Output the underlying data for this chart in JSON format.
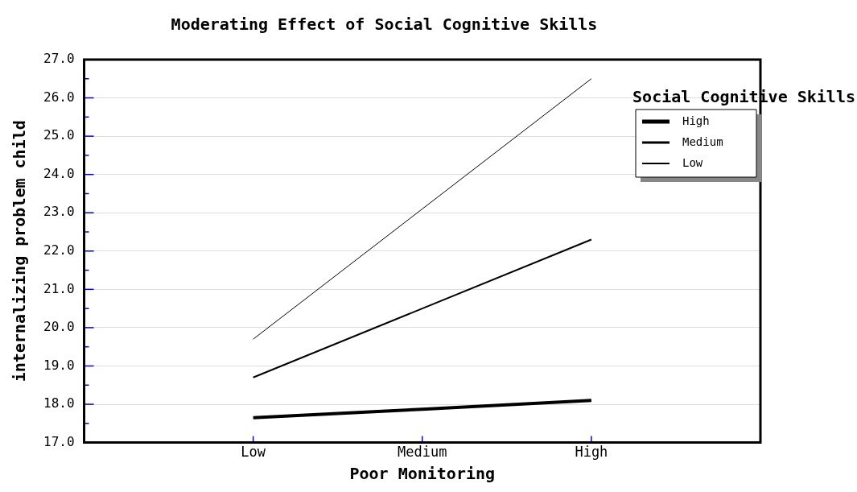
{
  "chart_data": {
    "type": "line",
    "title": "Moderating Effect of Social Cognitive Skills",
    "xlabel": "Poor Monitoring",
    "ylabel": "internalizing problem child",
    "legend_title": "Social Cognitive Skills",
    "legend": "top right",
    "grid": "y",
    "marker": "none",
    "line_style": "solid",
    "categories": [
      "Low",
      "Medium",
      "High"
    ],
    "ylim": [
      17,
      27
    ],
    "yticks": [
      {
        "value": 17,
        "label": "17.0"
      },
      {
        "value": 17.5,
        "label": null
      },
      {
        "value": 18,
        "label": "18.0"
      },
      {
        "value": 18.5,
        "label": null
      },
      {
        "value": 19,
        "label": "19.0"
      },
      {
        "value": 19.5,
        "label": null
      },
      {
        "value": 20,
        "label": "20.0"
      },
      {
        "value": 20.5,
        "label": null
      },
      {
        "value": 21,
        "label": "21.0"
      },
      {
        "value": 21.5,
        "label": null
      },
      {
        "value": 22,
        "label": "22.0"
      },
      {
        "value": 22.5,
        "label": null
      },
      {
        "value": 23,
        "label": "23.0"
      },
      {
        "value": 23.5,
        "label": null
      },
      {
        "value": 24,
        "label": "24.0"
      },
      {
        "value": 24.5,
        "label": null
      },
      {
        "value": 25,
        "label": "25.0"
      },
      {
        "value": 25.5,
        "label": null
      },
      {
        "value": 26,
        "label": "26.0"
      },
      {
        "value": 26.5,
        "label": null
      },
      {
        "value": 27,
        "label": "27.0"
      }
    ],
    "series": [
      {
        "name": "High",
        "color": "#000000",
        "values": [
          17.65,
          17.87,
          18.1
        ]
      },
      {
        "name": "Medium",
        "color": "#000000",
        "values": [
          18.7,
          20.5,
          22.3
        ]
      },
      {
        "name": "Low",
        "color": "#000000",
        "values": [
          19.7,
          23.1,
          26.5
        ]
      }
    ]
  }
}
